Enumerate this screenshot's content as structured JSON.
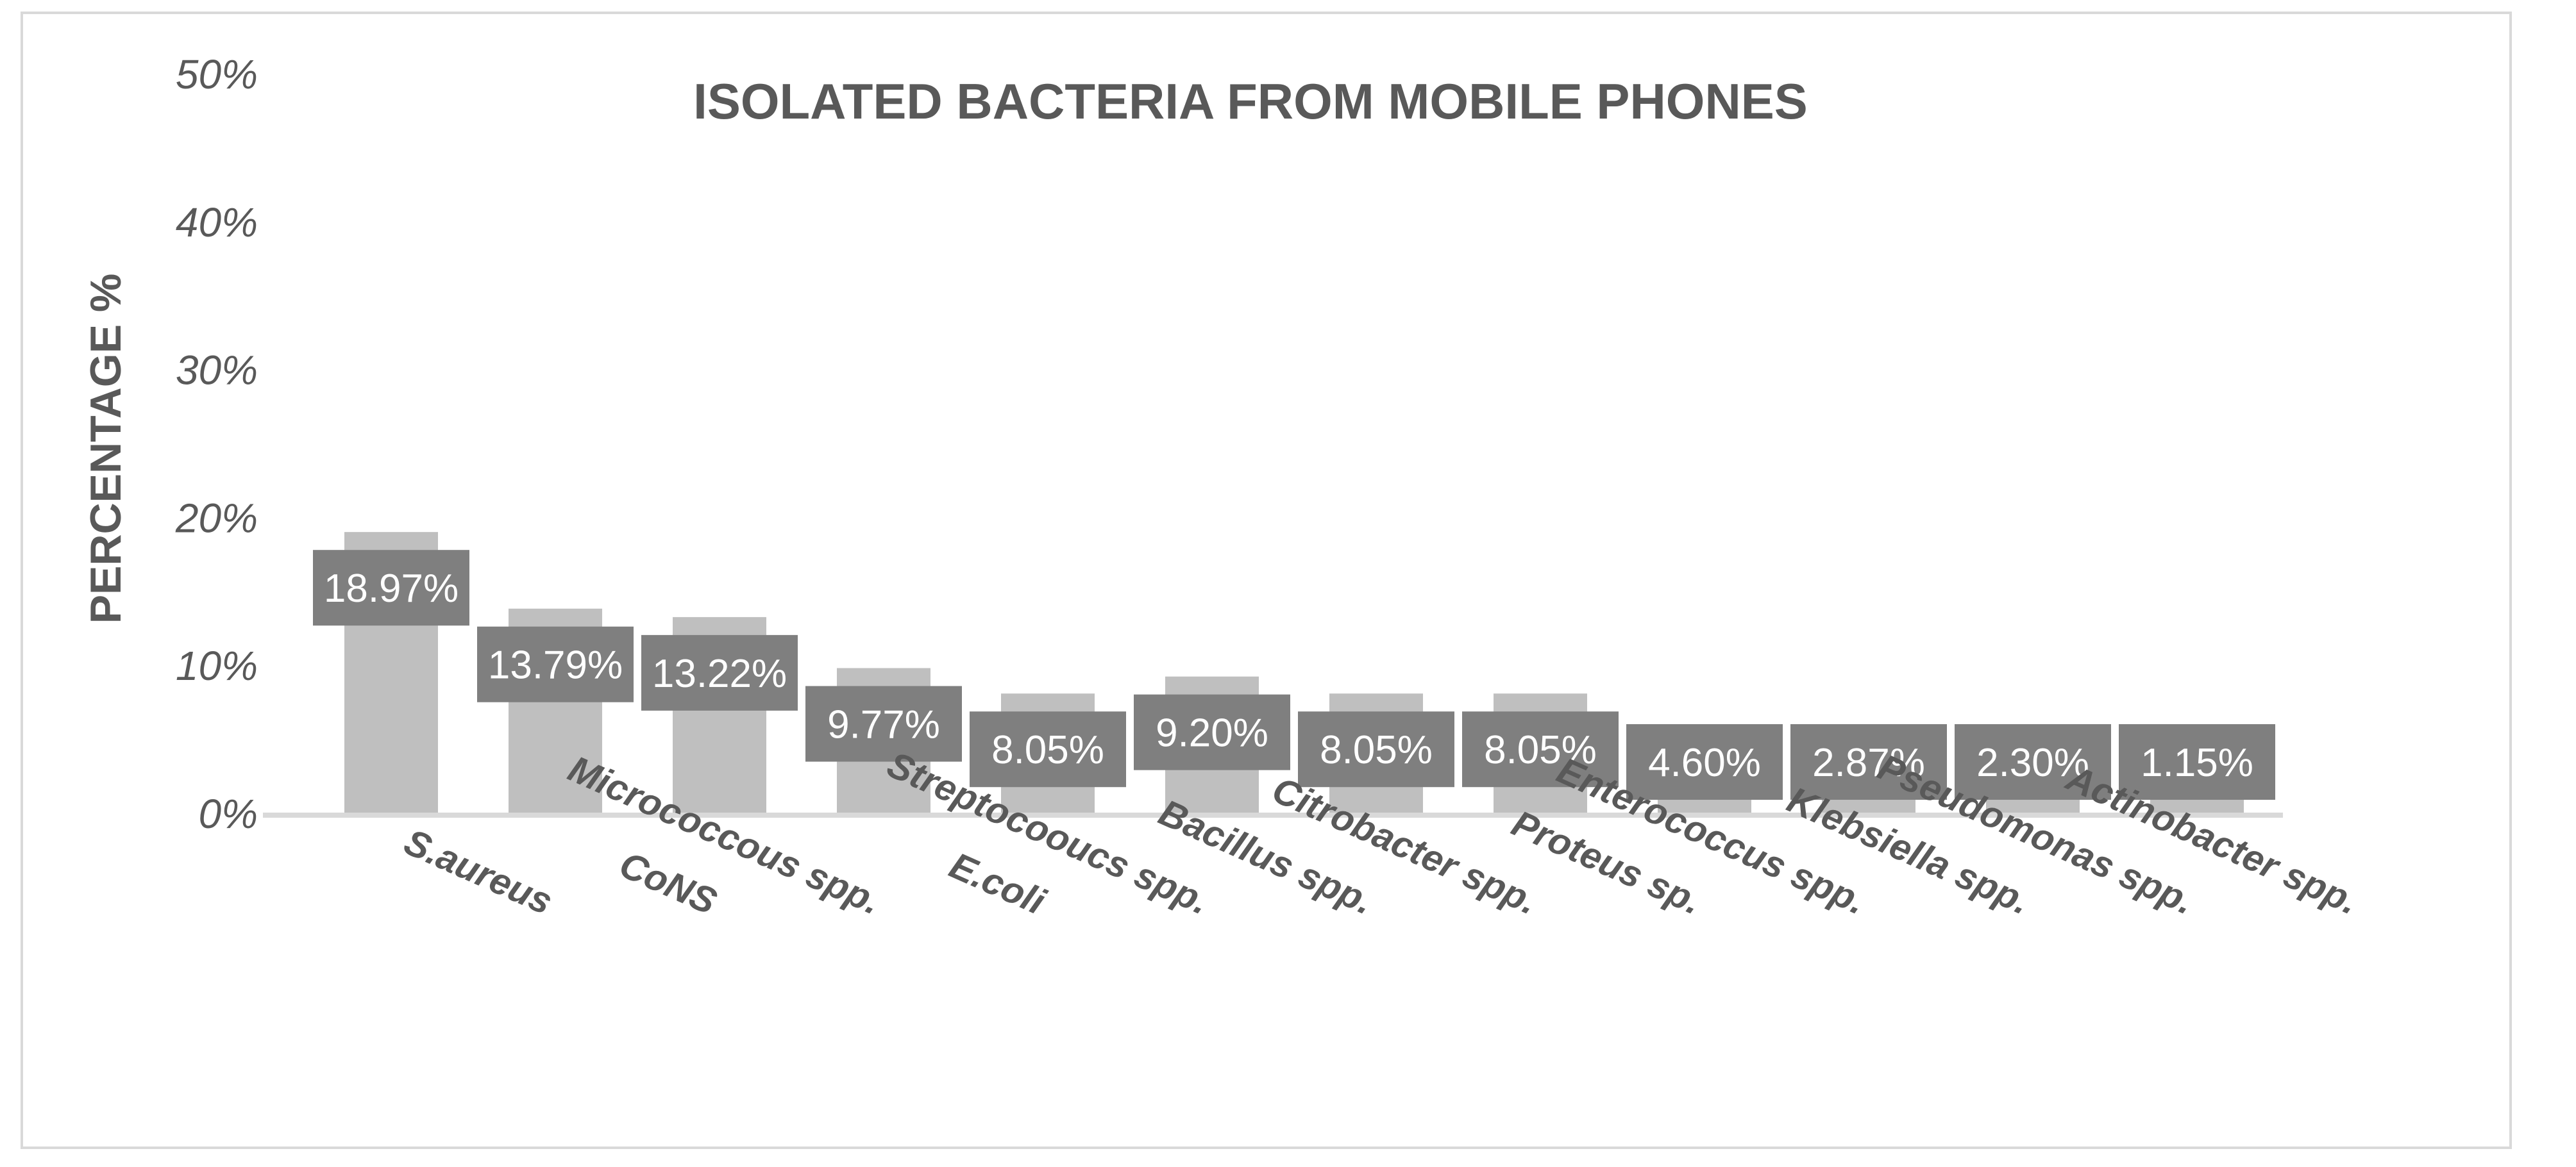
{
  "chart_data": {
    "type": "bar",
    "title": "ISOLATED BACTERIA FROM MOBILE PHONES",
    "xlabel": "",
    "ylabel": "PERCENTAGE %",
    "ylim": [
      0,
      50
    ],
    "y_ticks": [
      "0%",
      "10%",
      "20%",
      "30%",
      "40%",
      "50%"
    ],
    "grid": false,
    "legend": "none",
    "categories": [
      "S.aureus",
      "CoNS",
      "Micrococcous spp.",
      "E.coli",
      "Streptocoouсs spp.",
      "Bacillus spp.",
      "Citrobacter spp.",
      "Proteus sp.",
      "Enterococcus spp.",
      "Klebsiella spp.",
      "Pseudomonas spp.",
      "Actinobacter spp."
    ],
    "values": [
      18.97,
      13.79,
      13.22,
      9.77,
      8.05,
      9.2,
      8.05,
      8.05,
      4.6,
      2.87,
      2.3,
      1.15
    ],
    "data_labels": [
      "18.97%",
      "13.79%",
      "13.22%",
      "9.77%",
      "8.05%",
      "9.20%",
      "8.05%",
      "8.05%",
      "4.60%",
      "2.87%",
      "2.30%",
      "1.15%"
    ],
    "colors": {
      "bar": "#bfbfbf",
      "label_box": "#7f7f7f",
      "label_text": "#ffffff",
      "axis": "#d9d9d9",
      "text": "#595959"
    }
  }
}
